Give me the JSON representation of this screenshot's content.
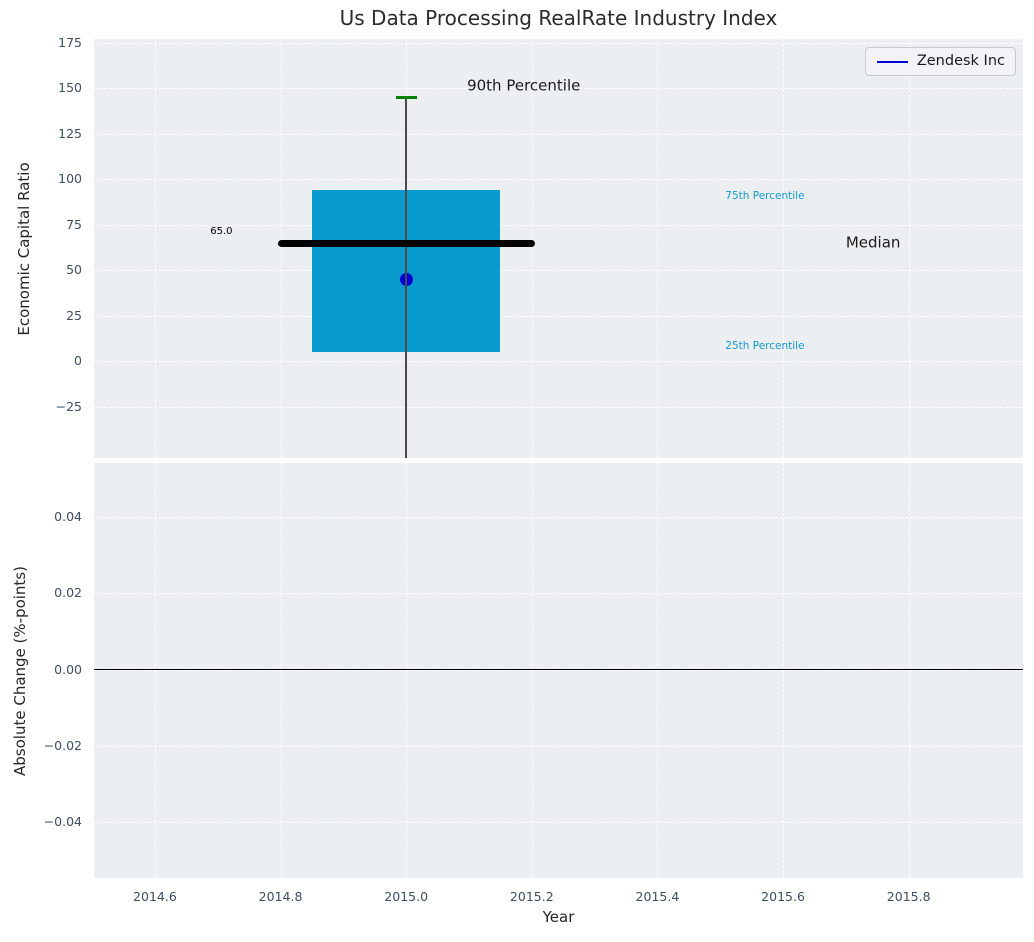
{
  "figure_title": "Us Data Processing RealRate Industry Index",
  "colors": {
    "plot_background": "#ECEFF1",
    "grid": "#FFFFFF",
    "tick_text": "#3E4E63",
    "text": "#262626",
    "box_fill": "#0A9BCE",
    "percentile_text": "#129BD2",
    "median_line": "#000000",
    "whisker": "#4A4A4A",
    "whisker_cap": "#008000",
    "company_point": "#0000D6",
    "legend_line": "#0000D6",
    "zero_line": "#000000"
  },
  "legend": {
    "label": "Zendesk Inc"
  },
  "chart_data": [
    {
      "type": "boxplot",
      "subplot": "top",
      "ylabel": "Economic Capital Ratio",
      "xlim": [
        2014.503,
        2015.982
      ],
      "ylim": [
        -53,
        177
      ],
      "xtick_values": [
        2014.6,
        2014.8,
        2015.0,
        2015.2,
        2015.4,
        2015.6,
        2015.8
      ],
      "xtick_labels": [
        "2014.6",
        "2014.8",
        "2015.0",
        "2015.2",
        "2015.4",
        "2015.6",
        "2015.8"
      ],
      "show_xtick_labels": false,
      "ytick_values": [
        175,
        150,
        125,
        100,
        75,
        50,
        25,
        0,
        -25
      ],
      "ytick_labels": [
        "175",
        "150",
        "125",
        "100",
        "75",
        "50",
        "25",
        "0",
        "−25"
      ],
      "grid": "white-dashed",
      "box": {
        "x_center": 2015.0,
        "x_left": 2014.85,
        "x_right": 2015.15,
        "p25": 5,
        "p75": 94,
        "median": 65,
        "median_x_left": 2014.8,
        "median_x_right": 2015.2,
        "p90": 145,
        "whisker_low": -65,
        "cap_half_width": 0.017
      },
      "point": {
        "name": "Zendesk Inc",
        "x": 2015.0,
        "y": 45
      },
      "annotations": [
        {
          "text": "65.0",
          "x": 2014.688,
          "y": 71,
          "size": 10,
          "color": "#000000"
        },
        {
          "text": "90th Percentile",
          "x": 2015.097,
          "y": 151,
          "size": 15,
          "color": "#1a1a1a"
        },
        {
          "text": "75th Percentile",
          "x": 2015.508,
          "y": 91,
          "size": 10.5,
          "color": "#129BD2"
        },
        {
          "text": "Median",
          "x": 2015.7,
          "y": 65,
          "size": 15,
          "color": "#1a1a1a"
        },
        {
          "text": "25th Percentile",
          "x": 2015.508,
          "y": 8.5,
          "size": 10.5,
          "color": "#129BD2"
        }
      ]
    },
    {
      "type": "line",
      "subplot": "bottom",
      "ylabel": "Absolute Change (%-points)",
      "xlabel": "Year",
      "xlim": [
        2014.503,
        2015.982
      ],
      "ylim": [
        -0.0547,
        0.0542
      ],
      "xtick_values": [
        2014.6,
        2014.8,
        2015.0,
        2015.2,
        2015.4,
        2015.6,
        2015.8
      ],
      "xtick_labels": [
        "2014.6",
        "2014.8",
        "2015.0",
        "2015.2",
        "2015.4",
        "2015.6",
        "2015.8"
      ],
      "show_xtick_labels": true,
      "ytick_values": [
        0.04,
        0.02,
        0.0,
        -0.02,
        -0.04
      ],
      "ytick_labels": [
        "0.04",
        "0.02",
        "0.00",
        "−0.02",
        "−0.04"
      ],
      "grid": "white-dashed",
      "zero_line_y": 0.0,
      "series": []
    }
  ]
}
